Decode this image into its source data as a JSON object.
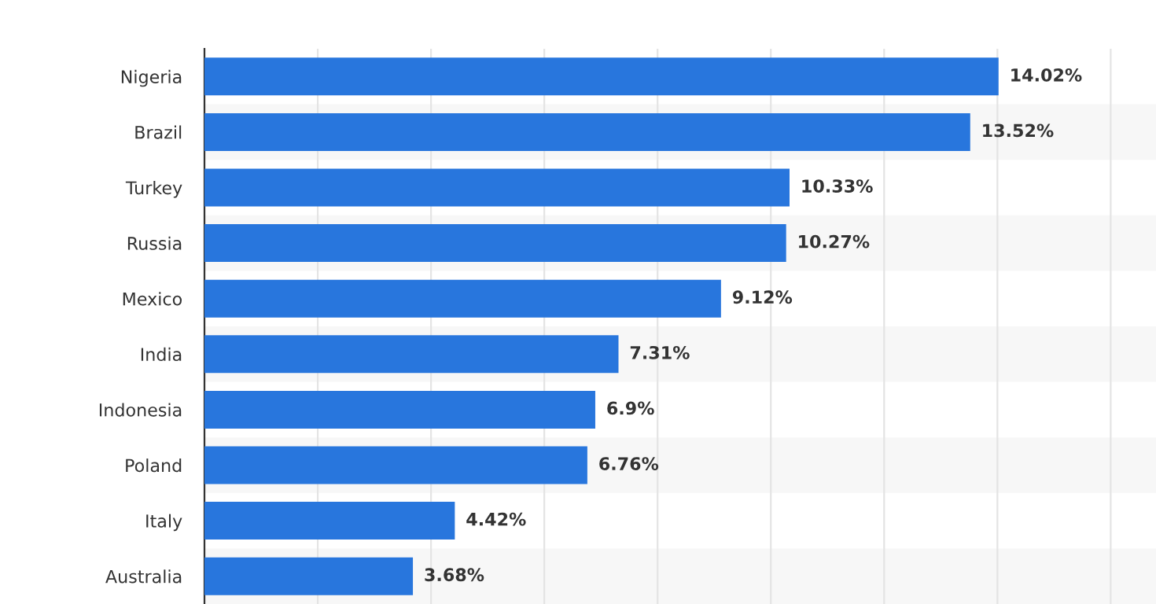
{
  "chart_data": {
    "type": "bar",
    "orientation": "horizontal",
    "categories": [
      "Nigeria",
      "Brazil",
      "Turkey",
      "Russia",
      "Mexico",
      "India",
      "Indonesia",
      "Poland",
      "Italy",
      "Australia"
    ],
    "values": [
      14.02,
      13.52,
      10.33,
      10.27,
      9.12,
      7.31,
      6.9,
      6.76,
      4.42,
      3.68
    ],
    "value_labels": [
      "14.02%",
      "13.52%",
      "10.33%",
      "10.27%",
      "9.12%",
      "7.31%",
      "6.9%",
      "6.76%",
      "4.42%",
      "3.68%"
    ],
    "color": "#2876dd",
    "xlim": [
      0,
      16.8
    ],
    "xticks": [
      {
        "value": 0,
        "label": null
      },
      {
        "value": 2,
        "label": null
      },
      {
        "value": 4,
        "label": null
      },
      {
        "value": 6,
        "label": null
      },
      {
        "value": 8,
        "label": null
      },
      {
        "value": 10,
        "label": null
      },
      {
        "value": 12,
        "label": null
      },
      {
        "value": 14,
        "label": null
      },
      {
        "value": 16,
        "label": null
      }
    ],
    "grid": "x",
    "tick_labels": "y"
  }
}
